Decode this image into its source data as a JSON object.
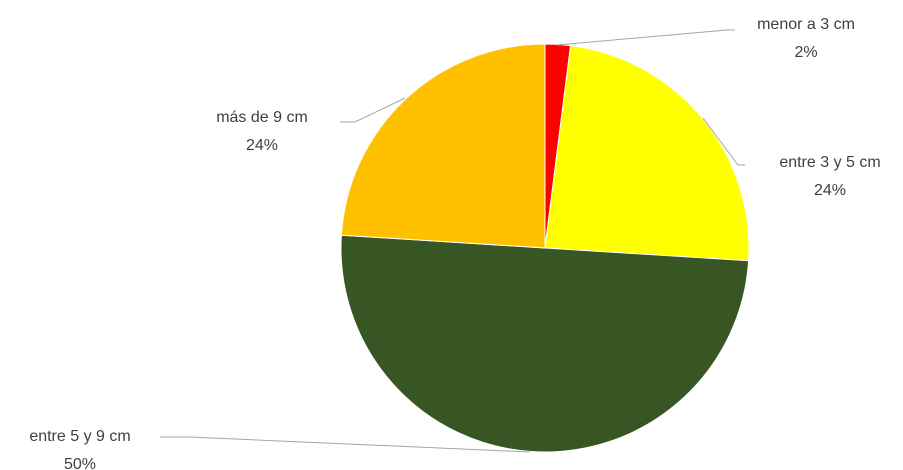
{
  "chart_data": {
    "type": "pie",
    "categories": [
      "menor a 3 cm",
      "entre 3 y 5 cm",
      "entre 5 y 9 cm",
      "más de 9 cm"
    ],
    "values": [
      2,
      24,
      50,
      24
    ],
    "value_labels": [
      "2%",
      "24%",
      "50%",
      "24%"
    ],
    "colors": [
      "#ff0000",
      "#ffff00",
      "#375623",
      "#ffc000"
    ]
  }
}
